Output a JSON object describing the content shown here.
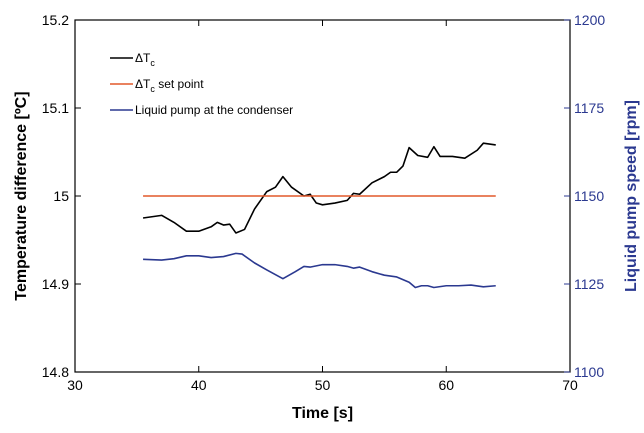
{
  "chart_data": {
    "type": "line",
    "xlabel": "Time [s]",
    "ylabel_left": "Temperature difference [ºC]",
    "ylabel_right": "Liquid pump speed [rpm]",
    "xlim": [
      30,
      70
    ],
    "ylim_left": [
      14.8,
      15.2
    ],
    "ylim_right": [
      1100,
      1200
    ],
    "x_ticks": [
      30,
      40,
      50,
      60,
      70
    ],
    "y_ticks_left": [
      14.8,
      14.9,
      15,
      15.1,
      15.2
    ],
    "y_ticks_left_labels": [
      "14.8",
      "14.9",
      "15",
      "15.1",
      "15.2"
    ],
    "y_ticks_right": [
      1100,
      1125,
      1150,
      1175,
      1200
    ],
    "grid": false,
    "legend_position": "top-left",
    "series": [
      {
        "name_main": "ΔT",
        "name_sub": "c",
        "name_suffix": "",
        "color": "#000000",
        "axis": "left",
        "points": [
          [
            35.5,
            14.975
          ],
          [
            37,
            14.978
          ],
          [
            38,
            14.97
          ],
          [
            39,
            14.96
          ],
          [
            40,
            14.96
          ],
          [
            41,
            14.965
          ],
          [
            41.5,
            14.97
          ],
          [
            42,
            14.967
          ],
          [
            42.5,
            14.968
          ],
          [
            43,
            14.958
          ],
          [
            43.7,
            14.962
          ],
          [
            44.5,
            14.985
          ],
          [
            45.5,
            15.005
          ],
          [
            46.2,
            15.01
          ],
          [
            46.8,
            15.022
          ],
          [
            47.5,
            15.01
          ],
          [
            48.5,
            15
          ],
          [
            49,
            15.002
          ],
          [
            49.5,
            14.992
          ],
          [
            50,
            14.99
          ],
          [
            51,
            14.992
          ],
          [
            52,
            14.995
          ],
          [
            52.5,
            15.003
          ],
          [
            53,
            15.002
          ],
          [
            54,
            15.015
          ],
          [
            55,
            15.022
          ],
          [
            55.5,
            15.027
          ],
          [
            56,
            15.027
          ],
          [
            56.5,
            15.034
          ],
          [
            57,
            15.055
          ],
          [
            57.7,
            15.046
          ],
          [
            58.5,
            15.044
          ],
          [
            59,
            15.056
          ],
          [
            59.5,
            15.045
          ],
          [
            60.5,
            15.045
          ],
          [
            61.5,
            15.043
          ],
          [
            62.5,
            15.052
          ],
          [
            63,
            15.06
          ],
          [
            64,
            15.058
          ]
        ]
      },
      {
        "name_main": "ΔT",
        "name_sub": "c",
        "name_suffix": " set point",
        "color": "#e2582a",
        "axis": "left",
        "points": [
          [
            35.5,
            15
          ],
          [
            64,
            15
          ]
        ]
      },
      {
        "name_main": "Liquid pump at the condenser",
        "name_sub": "",
        "name_suffix": "",
        "color": "#2b3990",
        "axis": "right",
        "points": [
          [
            35.5,
            1132
          ],
          [
            37,
            1131.8
          ],
          [
            38,
            1132.2
          ],
          [
            39,
            1133
          ],
          [
            40,
            1133
          ],
          [
            41,
            1132.5
          ],
          [
            42,
            1132.8
          ],
          [
            43,
            1133.7
          ],
          [
            43.5,
            1133.5
          ],
          [
            44.5,
            1131
          ],
          [
            45.5,
            1129
          ],
          [
            46.8,
            1126.5
          ],
          [
            47.8,
            1128.5
          ],
          [
            48.5,
            1130
          ],
          [
            49,
            1129.8
          ],
          [
            50,
            1130.5
          ],
          [
            51,
            1130.5
          ],
          [
            52,
            1130
          ],
          [
            52.5,
            1129.5
          ],
          [
            53,
            1129.8
          ],
          [
            54,
            1128.5
          ],
          [
            55,
            1127.5
          ],
          [
            56,
            1127
          ],
          [
            57,
            1125.5
          ],
          [
            57.5,
            1124
          ],
          [
            58,
            1124.5
          ],
          [
            58.5,
            1124.5
          ],
          [
            59,
            1124
          ],
          [
            60,
            1124.5
          ],
          [
            61,
            1124.5
          ],
          [
            62,
            1124.7
          ],
          [
            63,
            1124.2
          ],
          [
            64,
            1124.5
          ]
        ]
      }
    ]
  }
}
